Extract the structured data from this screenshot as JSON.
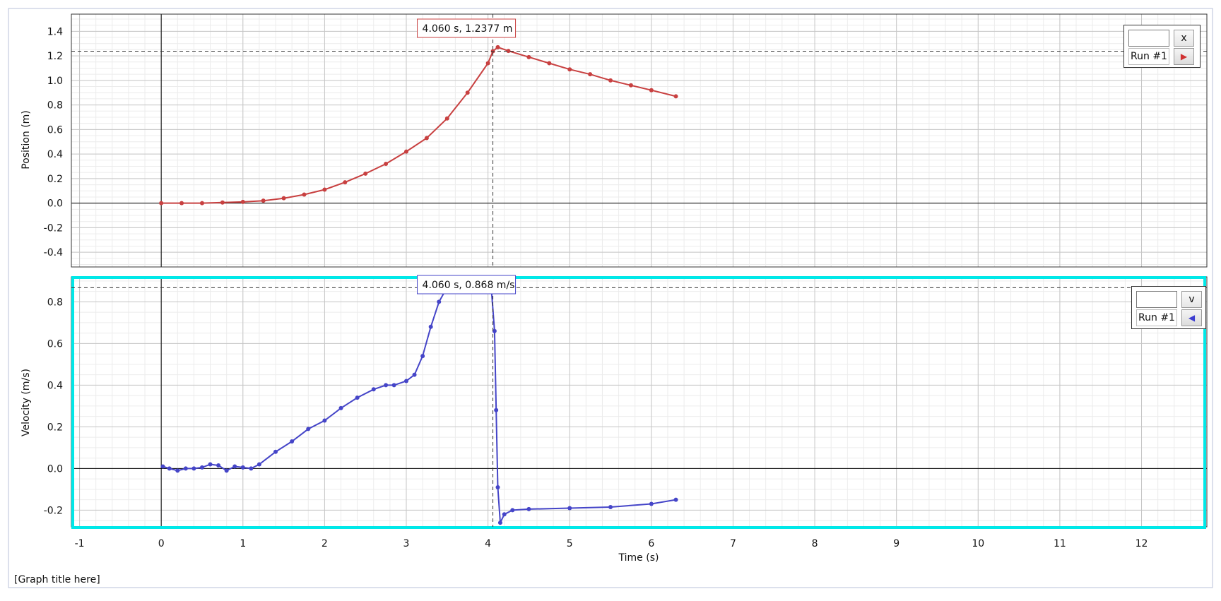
{
  "graph_title": "[Graph title here]",
  "colors": {
    "position": "#c84040",
    "velocity": "#4545c8",
    "selection": "#00e8e8"
  },
  "legend_top": {
    "field": "",
    "button": "x",
    "run": "Run #1",
    "play_icon": "play-right-icon"
  },
  "legend_bottom": {
    "field": "",
    "button": "v",
    "run": "Run #1",
    "play_icon": "play-left-icon"
  },
  "chart_data": [
    {
      "type": "scatter",
      "ylabel": "Position (m)",
      "xlim": [
        -1.1,
        12.8
      ],
      "ylim": [
        -0.52,
        1.54
      ],
      "yticks": [
        "1.4",
        "1.2",
        "1.0",
        "0.8",
        "0.6",
        "0.4",
        "0.2",
        "0.0",
        "-0.2",
        "-0.4"
      ],
      "cursor": {
        "x": 4.06,
        "y": 1.2377,
        "label": "4.060 s, 1.2377 m"
      },
      "series": [
        {
          "x": [
            0,
            0.25,
            0.5,
            0.75,
            1.0,
            1.25,
            1.5,
            1.75,
            2.0,
            2.25,
            2.5,
            2.75,
            3.0,
            3.25,
            3.5,
            3.75,
            4.0,
            4.06,
            4.12,
            4.25,
            4.5,
            4.75,
            5.0,
            5.25,
            5.5,
            5.75,
            6.0,
            6.3
          ],
          "y": [
            0,
            0,
            0,
            0.005,
            0.01,
            0.02,
            0.04,
            0.07,
            0.11,
            0.17,
            0.24,
            0.32,
            0.42,
            0.53,
            0.69,
            0.9,
            1.14,
            1.2377,
            1.27,
            1.24,
            1.19,
            1.14,
            1.09,
            1.05,
            1.0,
            0.96,
            0.92,
            0.87
          ]
        }
      ]
    },
    {
      "type": "scatter",
      "ylabel": "Velocity (m/s)",
      "xlabel": "Time (s)",
      "xlim": [
        -1.1,
        12.8
      ],
      "ylim": [
        -0.28,
        0.92
      ],
      "xticks": [
        "-1",
        "0",
        "1",
        "2",
        "3",
        "4",
        "5",
        "6",
        "7",
        "8",
        "9",
        "10",
        "11",
        "12"
      ],
      "yticks": [
        "0.8",
        "0.6",
        "0.4",
        "0.2",
        "0.0",
        "-0.2"
      ],
      "cursor": {
        "x": 4.06,
        "y": 0.868,
        "label": "4.060 s, 0.868 m/s"
      },
      "series": [
        {
          "x": [
            0.02,
            0.1,
            0.2,
            0.3,
            0.4,
            0.5,
            0.6,
            0.7,
            0.8,
            0.9,
            1.0,
            1.1,
            1.2,
            1.4,
            1.6,
            1.8,
            2.0,
            2.2,
            2.4,
            2.6,
            2.75,
            2.85,
            3.0,
            3.1,
            3.2,
            3.3,
            3.4,
            3.5,
            3.6,
            3.7,
            3.8,
            3.9,
            4.0,
            4.04,
            4.08,
            4.1,
            4.12,
            4.15,
            4.2,
            4.3,
            4.5,
            5.0,
            5.5,
            6.0,
            6.3
          ],
          "y": [
            0.01,
            0.0,
            -0.01,
            0.0,
            0.0,
            0.005,
            0.02,
            0.015,
            -0.01,
            0.01,
            0.005,
            0.0,
            0.02,
            0.08,
            0.13,
            0.19,
            0.23,
            0.29,
            0.34,
            0.38,
            0.4,
            0.4,
            0.42,
            0.45,
            0.54,
            0.68,
            0.8,
            0.87,
            0.92,
            0.92,
            0.92,
            0.92,
            0.92,
            0.87,
            0.66,
            0.28,
            -0.09,
            -0.26,
            -0.22,
            -0.2,
            -0.195,
            -0.19,
            -0.185,
            -0.17,
            -0.15
          ]
        }
      ]
    }
  ]
}
